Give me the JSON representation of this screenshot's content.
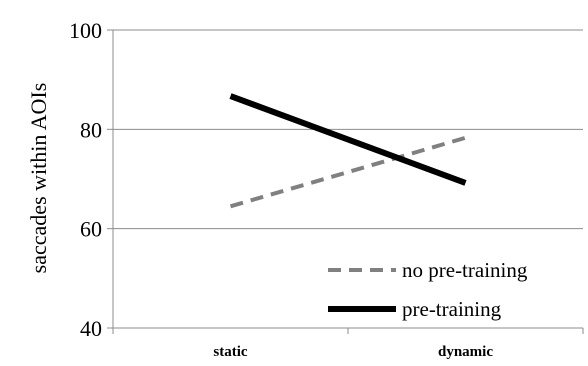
{
  "chart_data": {
    "type": "line",
    "categories": [
      "static",
      "dynamic"
    ],
    "series": [
      {
        "name": "no pre-training",
        "values": [
          64.5,
          78.3
        ],
        "color": "#808080",
        "style": "dashed"
      },
      {
        "name": "pre-training",
        "values": [
          86.7,
          69.2
        ],
        "color": "#000000",
        "style": "solid"
      }
    ],
    "title": "",
    "xlabel": "",
    "ylabel": "saccades within AOIs",
    "ylim": [
      40,
      100
    ],
    "yticks": [
      40,
      60,
      80,
      100
    ],
    "grid": "horizontal",
    "legend_position": "bottom-right"
  }
}
